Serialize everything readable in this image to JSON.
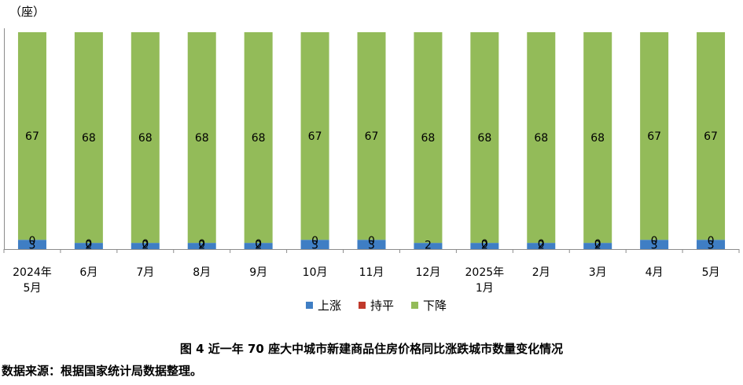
{
  "unit_label": "（座）",
  "caption": "图 4  近一年 70 座大中城市新建商品住房价格同比涨跌城市数量变化情况",
  "source": "数据来源：根据国家统计局数据整理。",
  "colors": {
    "up": "#3f7ec4",
    "flat": "#c0392b",
    "down": "#93bb59"
  },
  "legend": [
    {
      "label": "上涨",
      "color": "#3f7ec4"
    },
    {
      "label": "持平",
      "color": "#c0392b"
    },
    {
      "label": "下降",
      "color": "#93bb59"
    }
  ],
  "chart_data": {
    "type": "bar",
    "stacked": true,
    "ylim": [
      0,
      70
    ],
    "grid": false,
    "legend_position": "bottom",
    "categories": [
      [
        "2024年",
        "5月"
      ],
      [
        "6月"
      ],
      [
        "7月"
      ],
      [
        "8月"
      ],
      [
        "9月"
      ],
      [
        "10月"
      ],
      [
        "11月"
      ],
      [
        "12月"
      ],
      [
        "2025年",
        "1月"
      ],
      [
        "2月"
      ],
      [
        "3月"
      ],
      [
        "4月"
      ],
      [
        "5月"
      ]
    ],
    "series": [
      {
        "name": "上涨",
        "values": [
          3,
          2,
          2,
          2,
          2,
          3,
          3,
          2,
          2,
          2,
          2,
          3,
          3
        ]
      },
      {
        "name": "持平",
        "values": [
          0,
          0,
          0,
          0,
          0,
          0,
          0,
          0,
          0,
          0,
          0,
          0,
          0
        ]
      },
      {
        "name": "下降",
        "values": [
          67,
          68,
          68,
          68,
          68,
          67,
          67,
          68,
          68,
          68,
          68,
          67,
          67
        ]
      }
    ],
    "data_labels": {
      "上涨": [
        "3",
        "2",
        "2",
        "2",
        "2",
        "3",
        "3",
        "2",
        "2",
        "2",
        "2",
        "3",
        "3"
      ],
      "持平": [
        "0",
        "0",
        "0",
        "0",
        "0",
        "0",
        "0",
        "",
        "0",
        "0",
        "0",
        "0",
        "0"
      ],
      "下降": [
        "67",
        "68",
        "68",
        "68",
        "68",
        "67",
        "67",
        "68",
        "68",
        "68",
        "68",
        "67",
        "67"
      ]
    }
  }
}
